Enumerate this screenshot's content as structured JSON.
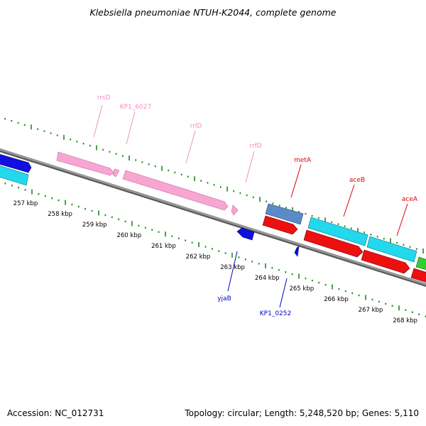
{
  "title": "Klebsiella pneumoniae NTUH-K2044, complete genome",
  "accession": "Accession: NC_012731",
  "summary": "Topology: circular; Length: 5,248,520 bp; Genes: 5,110",
  "colors": {
    "backbone": "#8a8a8a",
    "tick_dots": "#1a8a1a",
    "rrna": "#f7a6d2",
    "rrna_label": "#ee8fc4",
    "cds_blue": "#1010e0",
    "cds_cyan": "#22d8ec",
    "cds_red": "#ee1010",
    "cds_steel": "#5a8ac8",
    "cds_green": "#33cc33",
    "red_label": "#dd0000",
    "blue_label": "#0000cc"
  },
  "axis": {
    "ticks": [
      "257 kbp",
      "258 kbp",
      "259 kbp",
      "260 kbp",
      "261 kbp",
      "262 kbp",
      "263 kbp",
      "264 kbp",
      "265 kbp",
      "266 kbp",
      "267 kbp",
      "268 kbp"
    ]
  },
  "features": [
    {
      "name": "rrsD",
      "type": "rRNA",
      "strand": "+",
      "color": "rrna"
    },
    {
      "name": "KP1_6027",
      "type": "rRNA",
      "strand": "+",
      "color": "rrna"
    },
    {
      "name": "rrlD",
      "type": "rRNA",
      "strand": "+",
      "color": "rrna"
    },
    {
      "name": "rrfD",
      "type": "rRNA",
      "strand": "+",
      "color": "rrna"
    },
    {
      "name": "metA",
      "type": "CDS",
      "strand": "+",
      "color": "cds_steel"
    },
    {
      "name": "aceB",
      "type": "CDS",
      "strand": "+",
      "color": "cds_cyan"
    },
    {
      "name": "aceA",
      "type": "CDS",
      "strand": "+",
      "color": "cds_cyan"
    },
    {
      "name": "yjaB",
      "type": "CDS",
      "strand": "-",
      "color": "cds_blue"
    },
    {
      "name": "KP1_0252",
      "type": "CDS",
      "strand": "-",
      "color": "cds_blue"
    }
  ]
}
